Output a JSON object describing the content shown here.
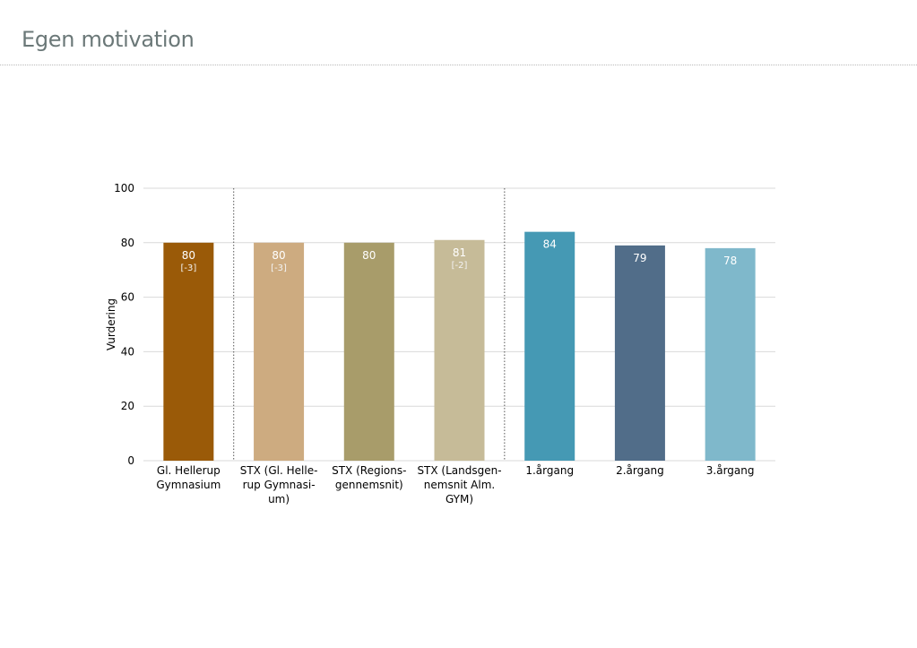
{
  "title": "Egen motivation",
  "chart_data": {
    "type": "bar",
    "ylabel": "Vurdering",
    "ylim": [
      0,
      100
    ],
    "yticks": [
      0,
      20,
      40,
      60,
      80,
      100
    ],
    "grid": true,
    "categories": [
      [
        "Gl. Hellerup",
        "Gymnasium"
      ],
      [
        "STX (Gl. Helle-",
        "rup Gymnasi-",
        "um)"
      ],
      [
        "STX (Regions-",
        "gennemsnit)"
      ],
      [
        "STX (Landsgen-",
        "nemsnit Alm.",
        "GYM)"
      ],
      [
        "1.årgang"
      ],
      [
        "2.årgang"
      ],
      [
        "3.årgang"
      ]
    ],
    "values": [
      80,
      80,
      80,
      81,
      84,
      79,
      78
    ],
    "value_labels": [
      "80",
      "80",
      "80",
      "81",
      "84",
      "79",
      "78"
    ],
    "sub_labels": [
      "[-3]",
      "[-3]",
      "",
      "[-2]",
      "",
      "",
      ""
    ],
    "colors": [
      "#9a5a08",
      "#cdab80",
      "#a89c6a",
      "#c6bb98",
      "#4599b4",
      "#516d89",
      "#7fb8cb"
    ],
    "group_separators_after": [
      0,
      3
    ]
  }
}
